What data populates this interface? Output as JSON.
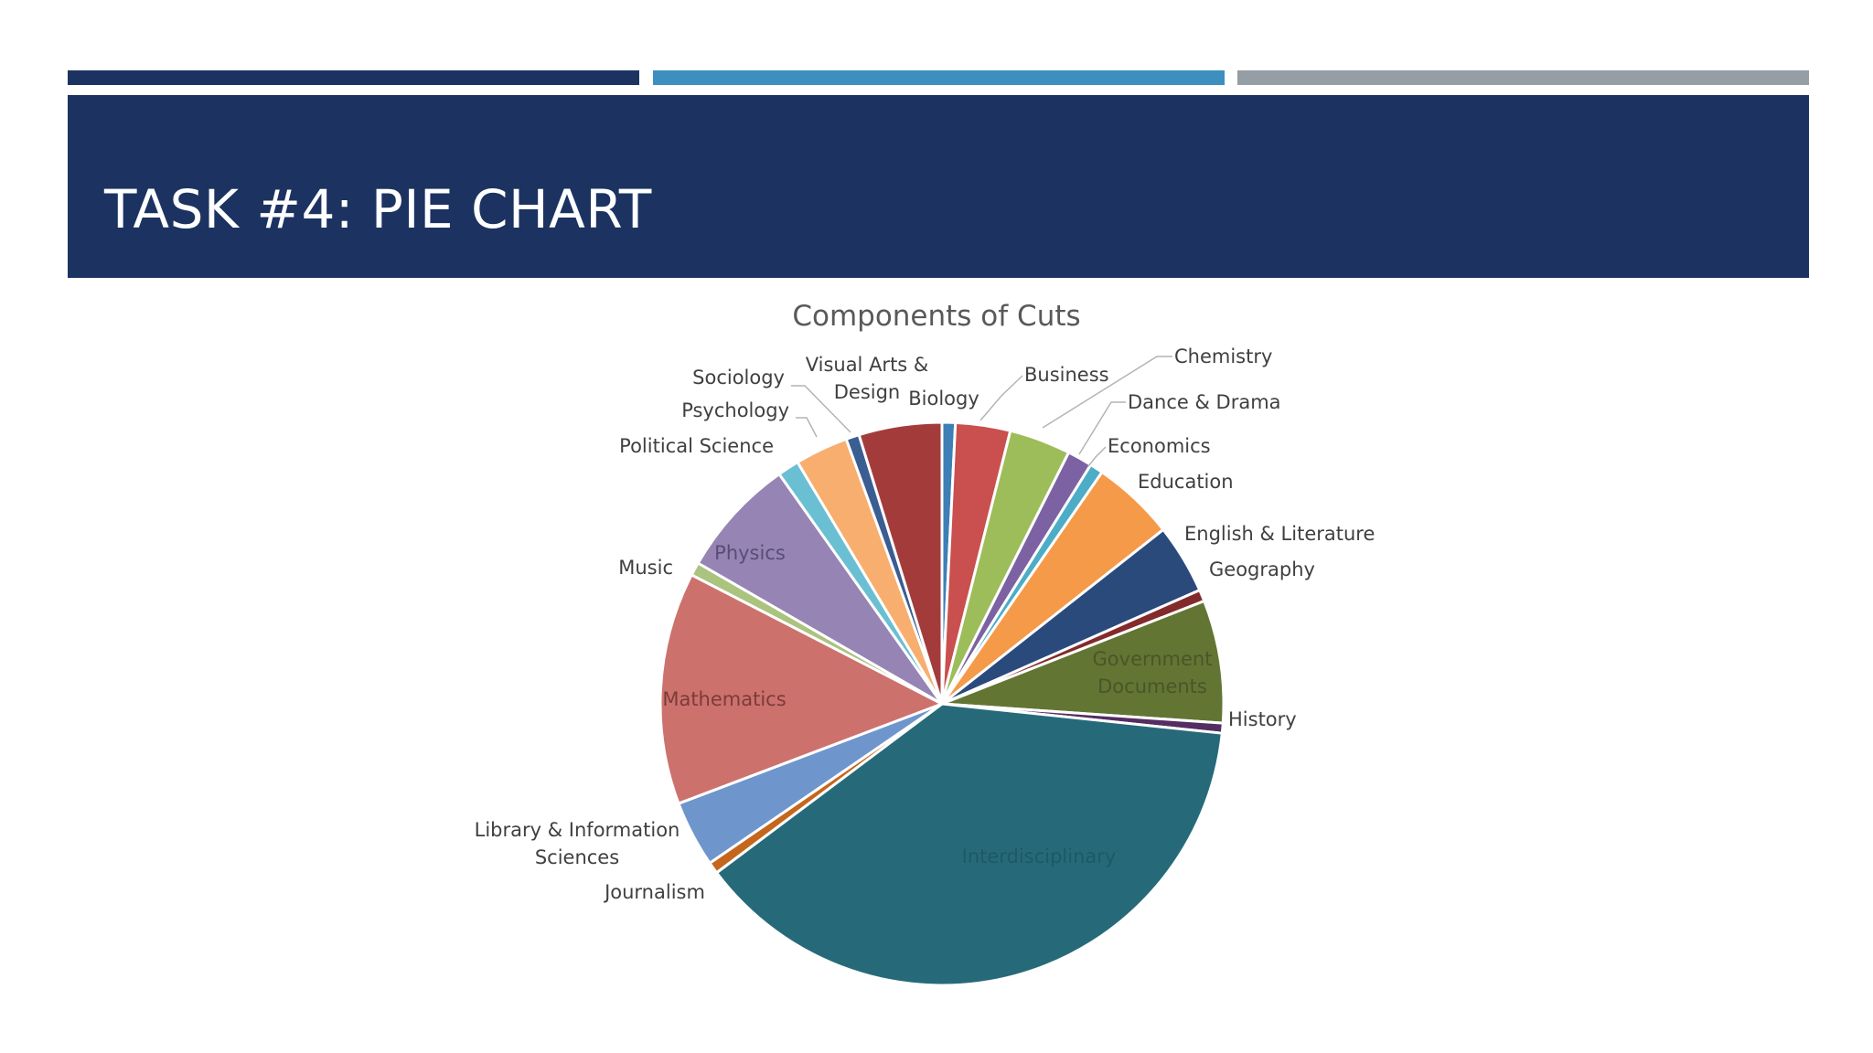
{
  "slide": {
    "title": "TASK #4: PIE CHART"
  },
  "colors": {
    "band": "#1c3361",
    "bar1": "#1c3361",
    "bar2": "#3d8fc0",
    "bar3": "#959ea5"
  },
  "chart_data": {
    "type": "pie",
    "title": "Components of Cuts",
    "start_angle_deg": 0,
    "direction": "clockwise",
    "legend": "none",
    "slices": [
      {
        "label": "Biology",
        "value": 0.8,
        "color": "#3e7fb6"
      },
      {
        "label": "Business",
        "value": 3.3,
        "color": "#c9504e"
      },
      {
        "label": "Chemistry",
        "value": 3.7,
        "color": "#9cbd59"
      },
      {
        "label": "Dance & Drama",
        "value": 1.5,
        "color": "#7c62a2"
      },
      {
        "label": "Economics",
        "value": 0.8,
        "color": "#4dacc6"
      },
      {
        "label": "Education",
        "value": 5.0,
        "color": "#f59a49"
      },
      {
        "label": "English & Literature",
        "value": 4.2,
        "color": "#2a4a7c"
      },
      {
        "label": "Geography",
        "value": 0.7,
        "color": "#832a2d"
      },
      {
        "label": "Government Documents",
        "value": 7.4,
        "color": "#637533"
      },
      {
        "label": "History",
        "value": 0.6,
        "color": "#542d62"
      },
      {
        "label": "Interdisciplinary",
        "value": 40.0,
        "color": "#266a7a"
      },
      {
        "label": "Journalism",
        "value": 0.7,
        "color": "#c4661c"
      },
      {
        "label": "Library & Information Sciences",
        "value": 4.0,
        "color": "#6f96cc"
      },
      {
        "label": "Mathematics",
        "value": 14.0,
        "color": "#cd716d"
      },
      {
        "label": "Music",
        "value": 0.8,
        "color": "#aac37f"
      },
      {
        "label": "Physics",
        "value": 7.2,
        "color": "#9684b4"
      },
      {
        "label": "Political Science",
        "value": 1.3,
        "color": "#6bbfd3"
      },
      {
        "label": "Psychology",
        "value": 3.2,
        "color": "#f8ae6e"
      },
      {
        "label": "Sociology",
        "value": 0.8,
        "color": "#3a5d92"
      },
      {
        "label": "Visual Arts & Design",
        "value": 5.0,
        "color": "#a43b3b"
      }
    ]
  }
}
